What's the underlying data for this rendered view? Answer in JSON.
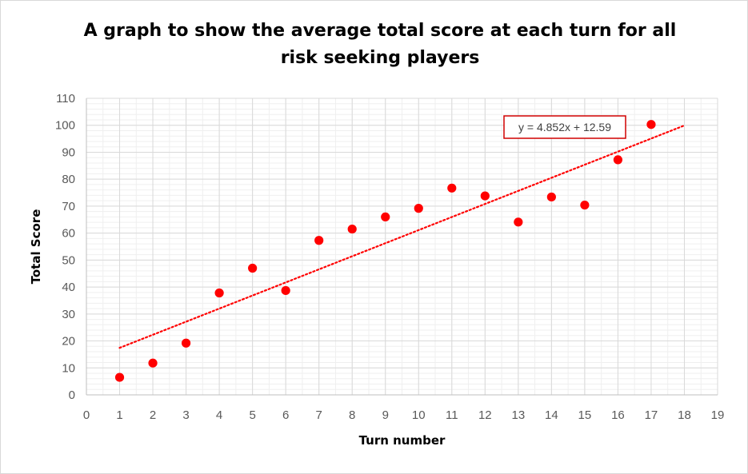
{
  "chart_data": {
    "type": "scatter",
    "title_line1": "A graph to show the average total score at each turn for all",
    "title_line2": "risk seeking players",
    "xlabel": "Turn number",
    "ylabel": "Total Score",
    "xlim": [
      0,
      19
    ],
    "ylim": [
      0,
      110
    ],
    "x_ticks": [
      0,
      1,
      2,
      3,
      4,
      5,
      6,
      7,
      8,
      9,
      10,
      11,
      12,
      13,
      14,
      15,
      16,
      17,
      18,
      19
    ],
    "y_ticks": [
      0,
      10,
      20,
      30,
      40,
      50,
      60,
      70,
      80,
      90,
      100,
      110
    ],
    "x_minor_step": 0.5,
    "y_minor_step": 2,
    "grid": true,
    "series": [
      {
        "x": [
          1,
          2,
          3,
          4,
          5,
          6,
          7,
          8,
          9,
          10,
          11,
          12,
          13,
          14,
          15,
          16,
          17
        ],
        "y": [
          6.5,
          11.8,
          19.2,
          37.8,
          47,
          38.7,
          57.3,
          61.5,
          66,
          69.2,
          76.7,
          73.8,
          64.1,
          73.4,
          70.4,
          87.2,
          100.3
        ],
        "color": "#ff0000"
      }
    ],
    "trendline": {
      "type": "linear",
      "slope": 4.852,
      "intercept": 12.59,
      "x_start": 1,
      "x_end": 18,
      "color": "#ff0000",
      "style": "dotted",
      "equation_label": "y = 4.852x + 12.59"
    }
  }
}
